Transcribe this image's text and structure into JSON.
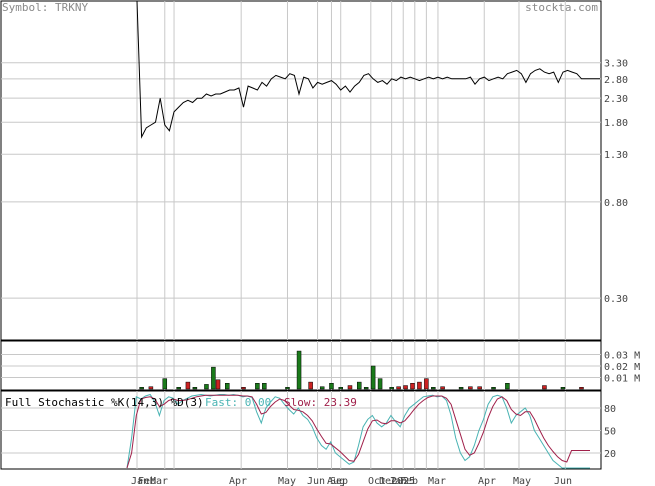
{
  "header": {
    "symbol_text": "Symbol: TRKNY",
    "site": "stockta.com"
  },
  "colors": {
    "price_line": "#000000",
    "grid": "#c8c8c8",
    "volume_up": "#1a7a1a",
    "volume_down": "#cc2222",
    "fast_k": "#49b3b3",
    "slow_d": "#a0204a"
  },
  "chart_data": [
    {
      "type": "line",
      "name": "price",
      "yscale": "log",
      "ylim": [
        0.2,
        6.0
      ],
      "y_ticks": [
        "3.30",
        "2.80",
        "2.30",
        "1.80",
        "1.30",
        "0.80",
        "0.30"
      ],
      "x_ticks": [
        "Jan",
        "Feb",
        "Mar",
        "Apr",
        "May",
        "Jun",
        "Aug",
        "Sep",
        "Oct",
        "Dec",
        "Jan",
        "2025",
        "Feb",
        "Mar",
        "Apr",
        "May",
        "Jun"
      ],
      "x": [
        0,
        2,
        4,
        6,
        8,
        10,
        12,
        14,
        16,
        18,
        20,
        22,
        24,
        26,
        28,
        30,
        32,
        34,
        36,
        38,
        40,
        42,
        44,
        46,
        48,
        50,
        52,
        54,
        56,
        58,
        60,
        62,
        64,
        66,
        68,
        70,
        72,
        74,
        76,
        78,
        80,
        82,
        84,
        86,
        88,
        90,
        92,
        94,
        96,
        98,
        100,
        102,
        104,
        106,
        108,
        110,
        112,
        114,
        116,
        118,
        120,
        122,
        124,
        126,
        128,
        130,
        132,
        134,
        136,
        138,
        140,
        142,
        144,
        146,
        148,
        150,
        152,
        154,
        156,
        158,
        160,
        162,
        164,
        166,
        168,
        170,
        172,
        174,
        176,
        178,
        180,
        182,
        184,
        186,
        188,
        190,
        192,
        194,
        196,
        198,
        200
      ],
      "values": [
        60,
        1.55,
        1.7,
        1.75,
        1.8,
        2.3,
        1.75,
        1.65,
        2.0,
        2.1,
        2.2,
        2.25,
        2.2,
        2.3,
        2.3,
        2.4,
        2.35,
        2.4,
        2.4,
        2.45,
        2.5,
        2.5,
        2.55,
        2.1,
        2.6,
        2.55,
        2.5,
        2.7,
        2.6,
        2.8,
        2.9,
        2.85,
        2.8,
        2.95,
        2.9,
        2.4,
        2.85,
        2.8,
        2.55,
        2.7,
        2.65,
        2.7,
        2.75,
        2.65,
        2.5,
        2.6,
        2.45,
        2.6,
        2.7,
        2.9,
        2.95,
        2.8,
        2.7,
        2.75,
        2.65,
        2.8,
        2.75,
        2.85,
        2.8,
        2.85,
        2.8,
        2.75,
        2.8,
        2.85,
        2.8,
        2.85,
        2.8,
        2.85,
        2.8,
        2.8,
        2.8,
        2.8,
        2.85,
        2.65,
        2.8,
        2.85,
        2.75,
        2.8,
        2.85,
        2.8,
        2.95,
        3.0,
        3.05,
        2.95,
        2.7,
        2.95,
        3.05,
        3.1,
        3.0,
        2.95,
        3.0,
        2.7,
        3.0,
        3.05,
        3.0,
        2.95,
        2.8,
        2.8,
        2.8,
        2.8,
        2.8
      ]
    },
    {
      "type": "bar",
      "name": "volume",
      "unit": "M",
      "ylim": [
        0,
        0.04
      ],
      "y_ticks": [
        "0.03 M",
        "0.02 M",
        "0.01 M"
      ],
      "bars": [
        {
          "x": 2,
          "v": 0.0015,
          "up": true
        },
        {
          "x": 6,
          "v": 0.002,
          "up": false
        },
        {
          "x": 12,
          "v": 0.009,
          "up": true
        },
        {
          "x": 18,
          "v": 0.0015,
          "up": true
        },
        {
          "x": 22,
          "v": 0.006,
          "up": false
        },
        {
          "x": 25,
          "v": 0.0015,
          "up": true
        },
        {
          "x": 30,
          "v": 0.004,
          "up": true
        },
        {
          "x": 33,
          "v": 0.019,
          "up": true
        },
        {
          "x": 35,
          "v": 0.008,
          "up": false
        },
        {
          "x": 39,
          "v": 0.005,
          "up": true
        },
        {
          "x": 46,
          "v": 0.0015,
          "up": false
        },
        {
          "x": 52,
          "v": 0.005,
          "up": true
        },
        {
          "x": 55,
          "v": 0.005,
          "up": true
        },
        {
          "x": 65,
          "v": 0.0015,
          "up": true
        },
        {
          "x": 70,
          "v": 0.033,
          "up": true
        },
        {
          "x": 75,
          "v": 0.006,
          "up": false
        },
        {
          "x": 80,
          "v": 0.002,
          "up": true
        },
        {
          "x": 84,
          "v": 0.005,
          "up": true
        },
        {
          "x": 88,
          "v": 0.0015,
          "up": true
        },
        {
          "x": 92,
          "v": 0.003,
          "up": false
        },
        {
          "x": 96,
          "v": 0.006,
          "up": true
        },
        {
          "x": 99,
          "v": 0.0015,
          "up": true
        },
        {
          "x": 102,
          "v": 0.02,
          "up": true
        },
        {
          "x": 105,
          "v": 0.009,
          "up": true
        },
        {
          "x": 110,
          "v": 0.0015,
          "up": true
        },
        {
          "x": 113,
          "v": 0.002,
          "up": false
        },
        {
          "x": 116,
          "v": 0.003,
          "up": false
        },
        {
          "x": 119,
          "v": 0.005,
          "up": false
        },
        {
          "x": 122,
          "v": 0.006,
          "up": false
        },
        {
          "x": 125,
          "v": 0.009,
          "up": false
        },
        {
          "x": 128,
          "v": 0.0015,
          "up": true
        },
        {
          "x": 132,
          "v": 0.002,
          "up": false
        },
        {
          "x": 140,
          "v": 0.0015,
          "up": true
        },
        {
          "x": 144,
          "v": 0.002,
          "up": false
        },
        {
          "x": 148,
          "v": 0.002,
          "up": false
        },
        {
          "x": 154,
          "v": 0.0015,
          "up": true
        },
        {
          "x": 160,
          "v": 0.005,
          "up": true
        },
        {
          "x": 176,
          "v": 0.003,
          "up": false
        },
        {
          "x": 184,
          "v": 0.0015,
          "up": true
        },
        {
          "x": 192,
          "v": 0.0015,
          "up": false
        }
      ]
    },
    {
      "type": "line",
      "name": "stochastic",
      "title": "Full Stochastic %K(14,3) %D(3)",
      "fast_label": "Fast:",
      "fast_value": "0.00",
      "slow_label": "Slow:",
      "slow_value": "23.39",
      "ylim": [
        0,
        100
      ],
      "y_ticks": [
        "80",
        "50",
        "20"
      ],
      "series": [
        {
          "name": "Fast",
          "x": [
            0,
            2,
            4,
            6,
            8,
            10,
            12,
            14,
            16,
            18,
            20,
            22,
            24,
            26,
            28,
            30,
            32,
            34,
            36,
            38,
            40,
            42,
            44,
            46,
            48,
            50,
            52,
            54,
            56,
            58,
            60,
            62,
            64,
            66,
            68,
            70,
            72,
            74,
            76,
            78,
            80,
            82,
            84,
            86,
            88,
            90,
            92,
            94,
            96,
            98,
            100,
            102,
            104,
            106,
            108,
            110,
            112,
            114,
            116,
            118,
            120,
            122,
            124,
            126,
            128,
            130,
            132,
            134,
            136,
            138,
            140,
            142,
            144,
            146,
            148,
            150,
            152,
            154,
            156,
            158,
            160,
            162,
            164,
            166,
            168,
            170,
            172,
            174,
            176,
            178,
            180,
            182,
            184,
            186,
            188,
            190,
            192,
            194,
            196,
            198,
            200
          ],
          "values": [
            0,
            40,
            95,
            92,
            96,
            98,
            88,
            70,
            90,
            95,
            93,
            85,
            90,
            93,
            96,
            97,
            98,
            97,
            96,
            97,
            98,
            98,
            97,
            98,
            97,
            95,
            96,
            94,
            75,
            60,
            80,
            88,
            95,
            93,
            85,
            78,
            72,
            80,
            70,
            65,
            55,
            40,
            30,
            25,
            35,
            20,
            15,
            10,
            5,
            8,
            30,
            55,
            65,
            70,
            60,
            55,
            60,
            70,
            62,
            55,
            70,
            80,
            85,
            90,
            95,
            96,
            97,
            95,
            96,
            90,
            70,
            40,
            20,
            10,
            15,
            30,
            50,
            65,
            85,
            95,
            97,
            95,
            80,
            60,
            70,
            75,
            80,
            70,
            50,
            40,
            30,
            20,
            10,
            5,
            0,
            0,
            0,
            0,
            0,
            0,
            0
          ]
        },
        {
          "name": "Slow",
          "x": [
            0,
            2,
            4,
            6,
            8,
            10,
            12,
            14,
            16,
            18,
            20,
            22,
            24,
            26,
            28,
            30,
            32,
            34,
            36,
            38,
            40,
            42,
            44,
            46,
            48,
            50,
            52,
            54,
            56,
            58,
            60,
            62,
            64,
            66,
            68,
            70,
            72,
            74,
            76,
            78,
            80,
            82,
            84,
            86,
            88,
            90,
            92,
            94,
            96,
            98,
            100,
            102,
            104,
            106,
            108,
            110,
            112,
            114,
            116,
            118,
            120,
            122,
            124,
            126,
            128,
            130,
            132,
            134,
            136,
            138,
            140,
            142,
            144,
            146,
            148,
            150,
            152,
            154,
            156,
            158,
            160,
            162,
            164,
            166,
            168,
            170,
            172,
            174,
            176,
            178,
            180,
            182,
            184,
            186,
            188,
            190,
            192,
            194,
            196,
            198,
            200
          ],
          "values": [
            0,
            20,
            70,
            92,
            94,
            95,
            92,
            82,
            85,
            90,
            92,
            90,
            90,
            91,
            93,
            95,
            96,
            97,
            97,
            97,
            97,
            97,
            97,
            97,
            97,
            96,
            96,
            95,
            85,
            72,
            74,
            82,
            88,
            92,
            90,
            84,
            78,
            77,
            75,
            70,
            63,
            52,
            42,
            33,
            32,
            27,
            22,
            16,
            10,
            9,
            18,
            35,
            52,
            63,
            64,
            60,
            59,
            63,
            63,
            60,
            63,
            70,
            78,
            85,
            90,
            94,
            96,
            96,
            96,
            93,
            85,
            65,
            45,
            25,
            17,
            20,
            33,
            48,
            67,
            82,
            92,
            95,
            90,
            78,
            72,
            70,
            75,
            75,
            65,
            52,
            40,
            30,
            22,
            15,
            10,
            8,
            23.39,
            23.39,
            23.39,
            23.39,
            23.39
          ]
        }
      ]
    }
  ]
}
